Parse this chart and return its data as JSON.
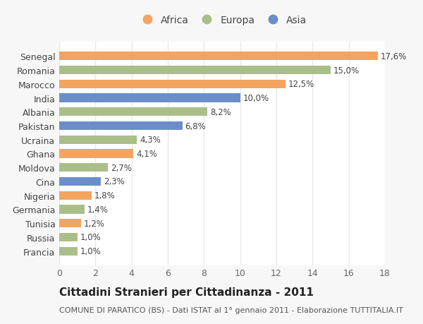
{
  "countries": [
    "Francia",
    "Russia",
    "Tunisia",
    "Germania",
    "Nigeria",
    "Cina",
    "Moldova",
    "Ghana",
    "Ucraina",
    "Pakistan",
    "Albania",
    "India",
    "Marocco",
    "Romania",
    "Senegal"
  ],
  "values": [
    1.0,
    1.0,
    1.2,
    1.4,
    1.8,
    2.3,
    2.7,
    4.1,
    4.3,
    6.8,
    8.2,
    10.0,
    12.5,
    15.0,
    17.6
  ],
  "labels": [
    "1,0%",
    "1,0%",
    "1,2%",
    "1,4%",
    "1,8%",
    "2,3%",
    "2,7%",
    "4,1%",
    "4,3%",
    "6,8%",
    "8,2%",
    "10,0%",
    "12,5%",
    "15,0%",
    "17,6%"
  ],
  "continents": [
    "Europa",
    "Europa",
    "Africa",
    "Europa",
    "Africa",
    "Asia",
    "Europa",
    "Africa",
    "Europa",
    "Asia",
    "Europa",
    "Asia",
    "Africa",
    "Europa",
    "Africa"
  ],
  "colors": {
    "Africa": "#F4A460",
    "Europa": "#ABBE8A",
    "Asia": "#6B8EC9"
  },
  "title": "Cittadini Stranieri per Cittadinanza - 2011",
  "subtitle": "COMUNE DI PARATICO (BS) - Dati ISTAT al 1° gennaio 2011 - Elaborazione TUTTITALIA.IT",
  "xlim": [
    0,
    18
  ],
  "xticks": [
    0,
    2,
    4,
    6,
    8,
    10,
    12,
    14,
    16,
    18
  ],
  "background_color": "#f7f7f7",
  "plot_bg_color": "#ffffff",
  "grid_color": "#e8e8e8",
  "bar_height": 0.62,
  "title_fontsize": 11,
  "subtitle_fontsize": 8,
  "tick_fontsize": 9,
  "label_fontsize": 8.5
}
